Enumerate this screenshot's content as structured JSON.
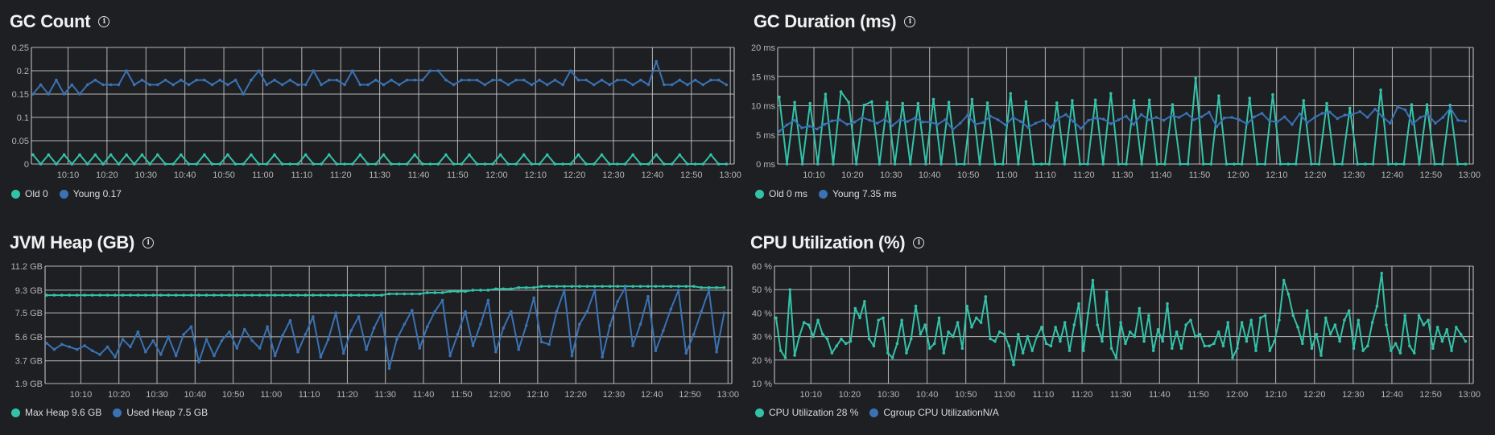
{
  "colors": {
    "background": "#1e1f23",
    "grid": "#cfcfcf",
    "teal": "#33c2a8",
    "blue": "#3a72b3"
  },
  "panels": [
    {
      "title": "GC Count",
      "legend": [
        {
          "label": "Old 0",
          "color": "#33c2a8"
        },
        {
          "label": "Young 0.17",
          "color": "#3a72b3"
        }
      ]
    },
    {
      "title": "GC Duration (ms)",
      "legend": [
        {
          "label": "Old 0 ms",
          "color": "#33c2a8"
        },
        {
          "label": "Young 7.35 ms",
          "color": "#3a72b3"
        }
      ]
    },
    {
      "title": "JVM Heap (GB)",
      "legend": [
        {
          "label": "Max Heap 9.6 GB",
          "color": "#33c2a8"
        },
        {
          "label": "Used Heap 7.5 GB",
          "color": "#3a72b3"
        }
      ]
    },
    {
      "title": "CPU Utilization (%)",
      "legend": [
        {
          "label": "CPU Utilization 28 %",
          "color": "#33c2a8"
        },
        {
          "label": "Cgroup CPU UtilizationN/A",
          "color": "#3a72b3"
        }
      ]
    }
  ],
  "chart_data": [
    {
      "type": "line",
      "title": "GC Count",
      "x_range_minutes_after_10_00": [
        0.6,
        181
      ],
      "x_first_minute": 1,
      "x_last_minute": 179,
      "xticks": [
        "10:10",
        "10:20",
        "10:30",
        "10:40",
        "10:50",
        "11:00",
        "11:10",
        "11:20",
        "11:30",
        "11:40",
        "11:50",
        "12:00",
        "12:10",
        "12:20",
        "12:30",
        "12:40",
        "12:50",
        "13:00"
      ],
      "ylim": [
        0,
        0.25
      ],
      "yticks": [
        0,
        0.05,
        0.1,
        0.15,
        0.2,
        0.25
      ],
      "ytick_labels": [
        "0",
        "0.05",
        "0.1",
        "0.15",
        "0.2",
        "0.25"
      ],
      "series": [
        {
          "name": "Old",
          "color": "#33c2a8",
          "values": [
            0.02,
            0,
            0.02,
            0,
            0.02,
            0,
            0.02,
            0,
            0.02,
            0,
            0.02,
            0,
            0.02,
            0,
            0.02,
            0,
            0.02,
            0,
            0,
            0.02,
            0,
            0,
            0.02,
            0,
            0,
            0.02,
            0,
            0,
            0.02,
            0,
            0,
            0.02,
            0,
            0,
            0,
            0.02,
            0,
            0,
            0.02,
            0,
            0,
            0,
            0.02,
            0,
            0,
            0.02,
            0,
            0,
            0,
            0.02,
            0,
            0,
            0,
            0.02,
            0,
            0,
            0.02,
            0,
            0,
            0,
            0.02,
            0,
            0,
            0.02,
            0,
            0,
            0.02,
            0,
            0,
            0,
            0.02,
            0,
            0,
            0.02,
            0,
            0,
            0,
            0.02,
            0,
            0,
            0.02,
            0,
            0,
            0.02,
            0,
            0,
            0,
            0.02,
            0,
            0
          ]
        },
        {
          "name": "Young",
          "color": "#3a72b3",
          "values": [
            0.15,
            0.17,
            0.15,
            0.18,
            0.15,
            0.17,
            0.15,
            0.17,
            0.18,
            0.17,
            0.17,
            0.17,
            0.2,
            0.17,
            0.18,
            0.17,
            0.17,
            0.18,
            0.17,
            0.18,
            0.17,
            0.18,
            0.18,
            0.17,
            0.18,
            0.17,
            0.18,
            0.15,
            0.18,
            0.2,
            0.17,
            0.18,
            0.17,
            0.18,
            0.17,
            0.17,
            0.2,
            0.17,
            0.18,
            0.18,
            0.17,
            0.2,
            0.17,
            0.17,
            0.18,
            0.17,
            0.18,
            0.17,
            0.18,
            0.18,
            0.18,
            0.2,
            0.2,
            0.18,
            0.17,
            0.18,
            0.18,
            0.18,
            0.17,
            0.18,
            0.18,
            0.17,
            0.18,
            0.18,
            0.17,
            0.18,
            0.17,
            0.18,
            0.17,
            0.2,
            0.18,
            0.18,
            0.17,
            0.18,
            0.17,
            0.18,
            0.18,
            0.17,
            0.18,
            0.17,
            0.22,
            0.17,
            0.17,
            0.18,
            0.17,
            0.18,
            0.17,
            0.18,
            0.18,
            0.17
          ]
        }
      ]
    },
    {
      "type": "line",
      "title": "GC Duration (ms)",
      "x_range_minutes_after_10_00": [
        0.6,
        181
      ],
      "x_first_minute": 1,
      "x_last_minute": 179,
      "xticks": [
        "10:10",
        "10:20",
        "10:30",
        "10:40",
        "10:50",
        "11:00",
        "11:10",
        "11:20",
        "11:30",
        "11:40",
        "11:50",
        "12:00",
        "12:10",
        "12:20",
        "12:30",
        "12:40",
        "12:50",
        "13:00"
      ],
      "ylim": [
        0,
        20
      ],
      "yticks": [
        0,
        5,
        10,
        15,
        20
      ],
      "ytick_labels": [
        "0 ms",
        "5 ms",
        "10 ms",
        "15 ms",
        "20 ms"
      ],
      "series": [
        {
          "name": "Old",
          "color": "#33c2a8",
          "values": [
            11.5,
            0,
            10.6,
            0,
            10.4,
            0,
            12,
            0,
            12.4,
            10.6,
            0,
            10.1,
            10.7,
            0,
            10.6,
            0,
            10.4,
            0,
            10.4,
            0,
            11.1,
            0,
            10.6,
            0,
            0,
            11.1,
            0,
            10.5,
            0,
            0,
            12.1,
            0,
            10.7,
            0,
            0,
            0,
            10.5,
            0,
            10.9,
            0,
            0,
            11,
            0,
            12.1,
            0,
            0,
            10.9,
            0,
            11,
            0,
            0,
            10.2,
            0,
            0,
            14.7,
            0,
            0,
            11.7,
            0,
            0,
            0,
            11.3,
            0,
            0,
            11.9,
            0,
            0,
            0,
            10.9,
            0,
            0,
            10.4,
            0,
            0,
            9.6,
            0,
            0,
            0,
            12.7,
            0,
            0,
            0,
            10.2,
            0,
            10.2,
            0,
            0,
            10.1,
            0,
            0
          ]
        },
        {
          "name": "Young",
          "color": "#3a72b3",
          "values": [
            5.6,
            6.7,
            7.5,
            6.2,
            6.5,
            6.0,
            6.8,
            7.4,
            7.6,
            6.8,
            7.2,
            8.0,
            7.5,
            7.0,
            7.7,
            6.6,
            7.6,
            7.3,
            7.9,
            7.2,
            7.2,
            6.8,
            7.6,
            5.9,
            7.0,
            8.4,
            6.8,
            7.1,
            8.2,
            7.6,
            6.7,
            8.0,
            7.3,
            6.3,
            7.0,
            7.5,
            6.3,
            7.8,
            8.5,
            7.3,
            6.1,
            7.5,
            7.9,
            7.7,
            6.9,
            7.6,
            8.2,
            6.8,
            8.5,
            7.6,
            8.0,
            7.5,
            8.3,
            8.0,
            8.7,
            7.6,
            8.1,
            8.9,
            6.4,
            7.9,
            8.0,
            7.6,
            6.9,
            8.1,
            8.7,
            7.4,
            7.2,
            8.1,
            6.8,
            8.6,
            7.1,
            8.0,
            8.7,
            8.9,
            7.8,
            8.4,
            8.5,
            9.0,
            8.0,
            9.4,
            8.1,
            7.0,
            9.8,
            9.3,
            6.9,
            8.0,
            8.5,
            7.0,
            8.0,
            9.6,
            7.5,
            7.35
          ]
        }
      ]
    },
    {
      "type": "line",
      "title": "JVM Heap (GB)",
      "x_range_minutes_after_10_00": [
        0.6,
        181
      ],
      "x_first_minute": 1,
      "x_last_minute": 179,
      "xticks": [
        "10:10",
        "10:20",
        "10:30",
        "10:40",
        "10:50",
        "11:00",
        "11:10",
        "11:20",
        "11:30",
        "11:40",
        "11:50",
        "12:00",
        "12:10",
        "12:20",
        "12:30",
        "12:40",
        "12:50",
        "13:00"
      ],
      "ylim": [
        1.9,
        11.2
      ],
      "yticks": [
        1.9,
        3.7,
        5.6,
        7.5,
        9.3,
        11.2
      ],
      "ytick_labels": [
        "1.9 GB",
        "3.7 GB",
        "5.6 GB",
        "7.5 GB",
        "9.3 GB",
        "11.2 GB"
      ],
      "series": [
        {
          "name": "Max Heap",
          "color": "#33c2a8",
          "values": [
            8.9,
            8.9,
            8.9,
            8.9,
            8.9,
            8.9,
            8.9,
            8.9,
            8.9,
            8.9,
            8.9,
            8.9,
            8.9,
            8.9,
            8.9,
            8.9,
            8.9,
            8.9,
            8.9,
            8.9,
            8.9,
            8.9,
            8.9,
            8.9,
            8.9,
            8.9,
            8.9,
            8.9,
            8.9,
            8.9,
            8.9,
            8.9,
            8.9,
            8.9,
            8.9,
            8.9,
            8.9,
            8.9,
            8.9,
            8.9,
            8.9,
            8.9,
            8.9,
            8.9,
            8.9,
            9.0,
            9.0,
            9.0,
            9.0,
            9.0,
            9.1,
            9.1,
            9.1,
            9.2,
            9.2,
            9.2,
            9.3,
            9.3,
            9.3,
            9.4,
            9.4,
            9.4,
            9.5,
            9.5,
            9.5,
            9.6,
            9.6,
            9.6,
            9.6,
            9.6,
            9.6,
            9.6,
            9.6,
            9.6,
            9.6,
            9.6,
            9.6,
            9.6,
            9.6,
            9.6,
            9.6,
            9.6,
            9.6,
            9.6,
            9.6,
            9.6,
            9.5,
            9.5,
            9.5,
            9.5
          ]
        },
        {
          "name": "Used Heap",
          "color": "#3a72b3",
          "values": [
            5.1,
            4.6,
            5.0,
            4.8,
            4.6,
            4.9,
            4.5,
            4.2,
            4.8,
            4.0,
            5.4,
            4.8,
            6.0,
            4.4,
            5.3,
            4.2,
            5.6,
            4.1,
            5.8,
            6.4,
            3.6,
            5.4,
            4.1,
            5.3,
            6.0,
            4.7,
            6.2,
            5.3,
            4.7,
            6.4,
            4.1,
            5.7,
            6.9,
            4.4,
            5.8,
            7.2,
            4.0,
            5.4,
            7.5,
            4.3,
            6.1,
            7.2,
            4.6,
            6.3,
            7.5,
            3.1,
            5.4,
            6.6,
            7.7,
            4.7,
            6.4,
            7.6,
            8.5,
            4.1,
            5.8,
            7.6,
            4.9,
            6.6,
            8.5,
            4.4,
            6.3,
            7.6,
            4.6,
            6.5,
            8.7,
            5.2,
            5.0,
            7.6,
            9.3,
            4.1,
            6.6,
            7.6,
            9.3,
            4.0,
            6.5,
            8.4,
            9.5,
            4.9,
            6.6,
            8.8,
            4.5,
            6.1,
            7.8,
            9.3,
            4.3,
            5.8,
            7.6,
            9.3,
            4.4,
            7.5
          ]
        }
      ]
    },
    {
      "type": "line",
      "title": "CPU Utilization (%)",
      "x_range_minutes_after_10_00": [
        0.6,
        181
      ],
      "x_first_minute": 1,
      "x_last_minute": 179,
      "xticks": [
        "10:10",
        "10:20",
        "10:30",
        "10:40",
        "10:50",
        "11:00",
        "11:10",
        "11:20",
        "11:30",
        "11:40",
        "11:50",
        "12:00",
        "12:10",
        "12:20",
        "12:30",
        "12:40",
        "12:50",
        "13:00"
      ],
      "ylim": [
        10,
        60
      ],
      "yticks": [
        10,
        20,
        30,
        40,
        50,
        60
      ],
      "ytick_labels": [
        "10 %",
        "20 %",
        "30 %",
        "40 %",
        "50 %",
        "60 %"
      ],
      "series": [
        {
          "name": "CPU Utilization",
          "color": "#33c2a8",
          "values": [
            38,
            24,
            21,
            50,
            22,
            30,
            36,
            35,
            30,
            37,
            31,
            29,
            23,
            26,
            29,
            27,
            28,
            42,
            38,
            45,
            29,
            26,
            37,
            38,
            23,
            21,
            27,
            37,
            23,
            29,
            43,
            31,
            35,
            25,
            27,
            38,
            23,
            32,
            30,
            36,
            25,
            43,
            34,
            38,
            36,
            47,
            29,
            28,
            32,
            31,
            26,
            18,
            31,
            23,
            30,
            24,
            30,
            34,
            27,
            26,
            34,
            28,
            36,
            24,
            35,
            44,
            24,
            40,
            54,
            35,
            28,
            49,
            25,
            21,
            36,
            27,
            32,
            30,
            42,
            28,
            39,
            24,
            33,
            28,
            44,
            25,
            32,
            25,
            35,
            37,
            30,
            31,
            26,
            26,
            27,
            32,
            26,
            36,
            21,
            25,
            36,
            28,
            37,
            24,
            38,
            39,
            24,
            28,
            37,
            54,
            48,
            39,
            34,
            27,
            41,
            25,
            31,
            22,
            38,
            31,
            35,
            28,
            37,
            41,
            25,
            37,
            24,
            26,
            36,
            43,
            57,
            35,
            24,
            27,
            23,
            39,
            26,
            23,
            39,
            35,
            37,
            25,
            34,
            28,
            33,
            24,
            34,
            31,
            28
          ]
        },
        {
          "name": "Cgroup CPU Utilization",
          "color": "#3a72b3",
          "values": []
        }
      ]
    }
  ]
}
